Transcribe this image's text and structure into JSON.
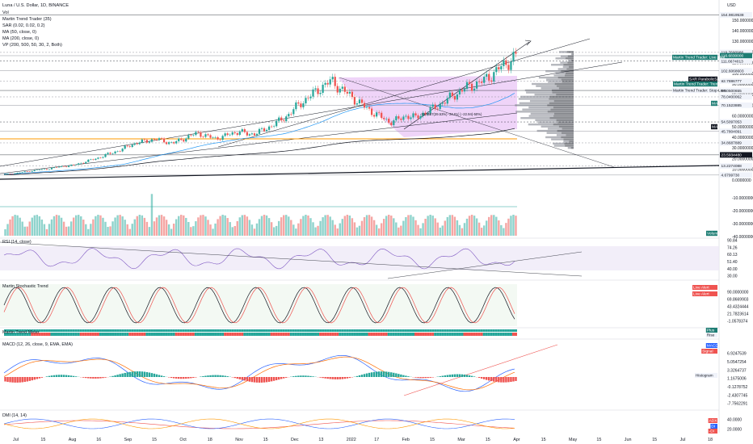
{
  "header": {
    "title": "Luna / U.S. Dollar, 1D, BINANCE",
    "indicators": [
      "Vol",
      "Martin Trend Trader (35)",
      "SAR (0.02, 0.02, 0.2)",
      "MA (50, close, 0)",
      "MA (200, close, 0)",
      "VP (200, 500, 50, 30, 2, Both)"
    ]
  },
  "currency": "USD",
  "colors": {
    "up": "#26a69a",
    "down": "#ef5350",
    "ma": "#2196f3",
    "purple_zone": "#d9a6f0",
    "teal_tag": "#1e7d74",
    "red_tag": "#ef5350",
    "blue_tag": "#2962ff",
    "black_tag": "#131722"
  },
  "price_axis_labels": [
    "150.0000000",
    "140.0000000",
    "130.0000000",
    "120.0000000",
    "110.0000000",
    "100.0000000",
    "90.0000000",
    "80.0000000",
    "70.0000000",
    "60.0000000",
    "50.0000000",
    "40.0000000",
    "30.0000000",
    "20.0000000",
    "10.0000000",
    "0.0000000",
    "-10.0000000",
    "-20.0000000",
    "-30.0000000",
    "-40.0000000"
  ],
  "price_tags": [
    {
      "text": "154.9819538",
      "style": "light"
    },
    {
      "text": "119.7690986",
      "style": "light"
    },
    {
      "text": "116.6830000",
      "style": "teal"
    },
    {
      "text": "111.6674013",
      "style": "light"
    },
    {
      "text": "102.6068603",
      "style": "light"
    },
    {
      "text": "92.7886777",
      "style": "light"
    },
    {
      "text": "84.0500655",
      "style": "light"
    },
    {
      "text": "78.0400062",
      "style": "light"
    },
    {
      "text": "70.1523885",
      "style": "light"
    },
    {
      "text": "54.5097053",
      "style": "light"
    },
    {
      "text": "45.7804091",
      "style": "light"
    },
    {
      "text": "34.8687889",
      "style": "light"
    },
    {
      "text": "23.5934480",
      "style": "black"
    },
    {
      "text": "13.2274088",
      "style": "light"
    },
    {
      "text": "4.6799730",
      "style": "light"
    }
  ],
  "label_tags": [
    {
      "text": "Martin Trend Trader: Live Alert",
      "style": "teal"
    },
    {
      "text": "SAR ParabolicSAR",
      "style": "black"
    },
    {
      "text": "Martin Trend Trader: Trend Line",
      "style": "teal"
    },
    {
      "text": "Martin Trend Trader: Stop Loss",
      "style": "light"
    },
    {
      "text": "MA",
      "style": "teal"
    },
    {
      "text": "MA",
      "style": "black"
    },
    {
      "text": "Volume",
      "style": "teal"
    }
  ],
  "annotation": "-22.9687(39.53%) -24.01(-) -22.94(-50%)",
  "rsi": {
    "title": "RSI (14, close)",
    "axis": [
      "90.84",
      "74.26",
      "60.13",
      "51.40",
      "40.00",
      "30.00"
    ]
  },
  "stoch": {
    "title": "Martin Stochastic Trend",
    "axis": [
      "90.0000000",
      "69.8669903",
      "43.4324444",
      "21.7823614",
      "-1.0578374"
    ],
    "tags": [
      {
        "text": "Live Alert",
        "style": "red"
      },
      {
        "text": "Live Alert",
        "style": "red"
      }
    ]
  },
  "trend_meter": {
    "title": "Martin Trend Meter",
    "tags": [
      {
        "text": "Plus",
        "style": "teal"
      },
      {
        "text": "Rise",
        "style": "light"
      }
    ]
  },
  "macd": {
    "title": "MACD (12, 26, close, 9, EMA, EMA)",
    "axis": [
      "6.9247539",
      "5.0547254",
      "3.3264737",
      "1.1675006",
      "-0.1278752",
      "-2.4307745",
      "-7.7562291"
    ],
    "tags": [
      {
        "text": "MACD",
        "style": "blue"
      },
      {
        "text": "Signal",
        "style": "red"
      },
      {
        "text": "Histogram",
        "style": "light"
      }
    ]
  },
  "dmi": {
    "title": "DMI (14, 14)",
    "axis": [
      "40.0000",
      "20.0000"
    ],
    "tags": [
      {
        "text": "ADX",
        "style": "red"
      },
      {
        "text": "DI",
        "style": "blue"
      },
      {
        "text": "-DI",
        "style": "red"
      }
    ]
  },
  "chart_data": {
    "type": "candlestick",
    "x_ticks": [
      "Jul",
      "15",
      "Aug",
      "16",
      "Sep",
      "15",
      "Oct",
      "18",
      "Nov",
      "15",
      "Dec",
      "13",
      "2022",
      "17",
      "Feb",
      "15",
      "Mar",
      "15",
      "Apr",
      "15",
      "May",
      "15",
      "Jun",
      "15",
      "Jul",
      "18"
    ],
    "ohlc_points": [
      [
        4.7,
        5.4
      ],
      [
        5.2,
        6.1
      ],
      [
        6.0,
        7.3
      ],
      [
        7.1,
        8.4
      ],
      [
        8.2,
        9.6
      ],
      [
        9.3,
        10.2
      ],
      [
        10.0,
        11.8
      ],
      [
        11.5,
        12.9
      ],
      [
        12.7,
        13.6
      ],
      [
        13.4,
        15.9
      ],
      [
        15.5,
        18.2
      ],
      [
        18.0,
        20.5
      ],
      [
        20.1,
        23.4
      ],
      [
        23.0,
        26.2
      ],
      [
        26.0,
        28.8
      ],
      [
        28.5,
        33.1
      ],
      [
        32.8,
        35.2
      ],
      [
        34.9,
        37.0
      ],
      [
        36.8,
        38.4
      ],
      [
        38.0,
        36.5
      ],
      [
        36.2,
        34.4
      ],
      [
        34.1,
        37.9
      ],
      [
        37.5,
        41.0
      ],
      [
        40.6,
        44.2
      ],
      [
        44.0,
        41.3
      ],
      [
        41.0,
        38.9
      ],
      [
        38.5,
        40.7
      ],
      [
        40.3,
        43.5
      ],
      [
        43.0,
        45.8
      ],
      [
        45.5,
        42.6
      ],
      [
        42.3,
        44.4
      ],
      [
        44.0,
        47.2
      ],
      [
        47.0,
        52.1
      ],
      [
        51.8,
        56.3
      ],
      [
        56.0,
        62.7
      ],
      [
        62.4,
        70.3
      ],
      [
        70.0,
        76.4
      ],
      [
        76.0,
        82.2
      ],
      [
        82.0,
        88.6
      ],
      [
        88.4,
        93.0
      ],
      [
        92.6,
        86.0
      ],
      [
        85.7,
        80.3
      ],
      [
        80.0,
        74.4
      ],
      [
        74.2,
        68.1
      ],
      [
        67.8,
        63.2
      ],
      [
        63.0,
        58.4
      ],
      [
        58.1,
        54.5
      ],
      [
        54.3,
        56.9
      ],
      [
        56.6,
        60.8
      ],
      [
        60.5,
        58.2
      ],
      [
        58.0,
        62.9
      ],
      [
        62.6,
        66.4
      ],
      [
        66.1,
        71.5
      ],
      [
        71.2,
        76.3
      ],
      [
        76.0,
        81.7
      ],
      [
        81.5,
        86.4
      ],
      [
        86.2,
        89.5
      ],
      [
        89.2,
        92.6
      ],
      [
        92.4,
        98.1
      ],
      [
        97.9,
        104.6
      ],
      [
        104.3,
        110.2
      ],
      [
        110.0,
        116.7
      ]
    ]
  }
}
